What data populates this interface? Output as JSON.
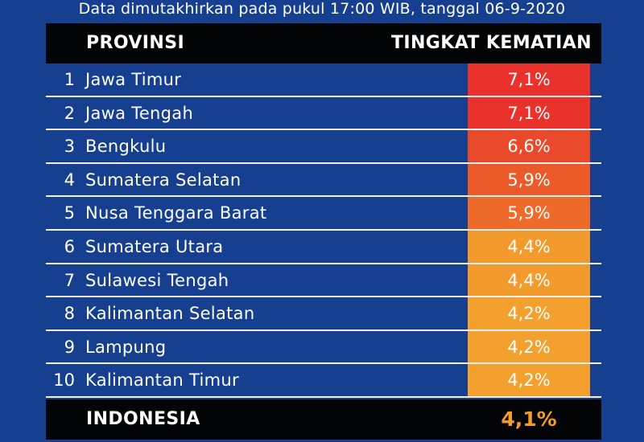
{
  "subtitle": "Data dimutakhirkan pada pukul 17:00 WIB, tanggal 06-9-2020",
  "header": {
    "province_label": "PROVINSI",
    "rate_label": "TINGKAT KEMATIAN"
  },
  "chart_data": {
    "type": "table",
    "columns": [
      "PROVINSI",
      "TINGKAT KEMATIAN"
    ],
    "rows": [
      {
        "rank": "1",
        "province": "Jawa Timur",
        "rate": "7,1%",
        "value": 7.1,
        "color": "#e8322b"
      },
      {
        "rank": "2",
        "province": "Jawa Tengah",
        "rate": "7,1%",
        "value": 7.1,
        "color": "#e8322b"
      },
      {
        "rank": "3",
        "province": "Bengkulu",
        "rate": "6,6%",
        "value": 6.6,
        "color": "#ea4a2c"
      },
      {
        "rank": "4",
        "province": "Sumatera Selatan",
        "rate": "5,9%",
        "value": 5.9,
        "color": "#ec5a2a"
      },
      {
        "rank": "5",
        "province": "Nusa Tenggara Barat",
        "rate": "5,9%",
        "value": 5.9,
        "color": "#ee6a28"
      },
      {
        "rank": "6",
        "province": "Sumatera Utara",
        "rate": "4,4%",
        "value": 4.4,
        "color": "#f39a2c"
      },
      {
        "rank": "7",
        "province": "Sulawesi Tengah",
        "rate": "4,4%",
        "value": 4.4,
        "color": "#f39a2c"
      },
      {
        "rank": "8",
        "province": "Kalimantan Selatan",
        "rate": "4,2%",
        "value": 4.2,
        "color": "#f4a02e"
      },
      {
        "rank": "9",
        "province": "Lampung",
        "rate": "4,2%",
        "value": 4.2,
        "color": "#f4a02e"
      },
      {
        "rank": "10",
        "province": "Kalimantan Timur",
        "rate": "4,2%",
        "value": 4.2,
        "color": "#f4a02e"
      }
    ],
    "total": {
      "label": "INDONESIA",
      "rate": "4,1%",
      "value": 4.1,
      "color": "#f39c2a"
    }
  }
}
